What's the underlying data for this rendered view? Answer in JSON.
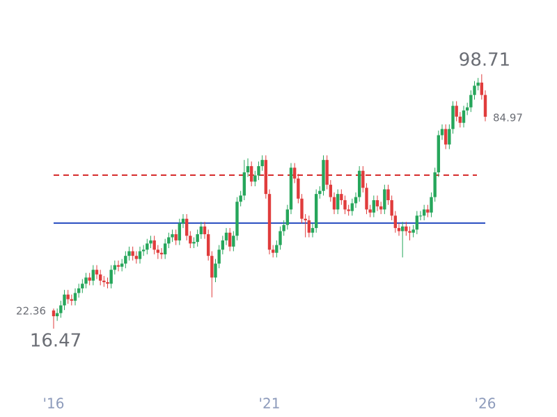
{
  "chart_data": {
    "type": "candlestick",
    "categories": [
      "'16",
      null,
      null,
      null,
      null,
      null,
      null,
      null,
      null,
      null,
      null,
      null,
      null,
      null,
      null,
      null,
      null,
      null,
      null,
      null,
      null,
      null,
      null,
      null,
      null,
      null,
      null,
      null,
      null,
      null,
      null,
      null,
      null,
      null,
      null,
      null,
      null,
      null,
      null,
      null,
      null,
      null,
      null,
      null,
      null,
      null,
      null,
      null,
      null,
      null,
      null,
      null,
      null,
      null,
      null,
      null,
      null,
      null,
      null,
      null,
      "'21",
      null,
      null,
      null,
      null,
      null,
      null,
      null,
      null,
      null,
      null,
      null,
      null,
      null,
      null,
      null,
      null,
      null,
      null,
      null,
      null,
      null,
      null,
      null,
      null,
      null,
      null,
      null,
      null,
      null,
      null,
      null,
      null,
      null,
      null,
      null,
      null,
      null,
      null,
      null,
      null,
      null,
      null,
      null,
      null,
      null,
      null,
      null,
      null,
      null,
      null,
      null,
      null,
      null,
      null,
      null,
      null,
      null,
      null,
      null,
      "'26"
    ],
    "ohlc": [
      [
        22.36,
        23,
        16.47,
        20.5
      ],
      [
        20.5,
        23,
        19,
        21.5
      ],
      [
        21.5,
        25.5,
        20,
        24
      ],
      [
        24,
        29,
        22.5,
        27.5
      ],
      [
        27.5,
        29,
        24.5,
        26
      ],
      [
        26,
        27.5,
        24,
        25.5
      ],
      [
        25.5,
        29.5,
        24,
        28
      ],
      [
        28,
        31,
        26.5,
        29.5
      ],
      [
        29.5,
        32.5,
        28,
        31
      ],
      [
        31,
        34.5,
        29.5,
        33
      ],
      [
        33,
        34.5,
        30.5,
        32
      ],
      [
        32,
        37,
        30.5,
        35.5
      ],
      [
        35.5,
        37,
        32.5,
        34
      ],
      [
        34,
        35.5,
        30.5,
        32
      ],
      [
        32,
        33.5,
        30,
        31.5
      ],
      [
        31.5,
        33,
        29.5,
        31
      ],
      [
        31,
        37,
        29.5,
        35.5
      ],
      [
        35.5,
        38.5,
        34,
        37
      ],
      [
        37,
        38.5,
        35,
        36.5
      ],
      [
        36.5,
        39,
        35,
        37.5
      ],
      [
        37.5,
        41.5,
        36,
        40
      ],
      [
        40,
        43,
        38.5,
        41.5
      ],
      [
        41.5,
        43,
        38.5,
        40
      ],
      [
        40,
        41.5,
        37.5,
        39
      ],
      [
        39,
        43,
        37.5,
        41.5
      ],
      [
        41.5,
        43.5,
        40,
        42
      ],
      [
        42,
        45.5,
        40.5,
        44
      ],
      [
        44,
        46.5,
        42.5,
        45
      ],
      [
        45,
        46.5,
        40.5,
        42
      ],
      [
        42,
        43.5,
        39,
        41
      ],
      [
        41,
        42.5,
        39,
        40.5
      ],
      [
        40.5,
        45.5,
        39,
        44
      ],
      [
        44,
        47.5,
        42.5,
        46
      ],
      [
        46,
        48.5,
        44.5,
        47
      ],
      [
        47,
        48.5,
        43.5,
        45
      ],
      [
        45,
        52,
        43.5,
        50.5
      ],
      [
        50.5,
        53.5,
        49,
        52
      ],
      [
        52,
        53.5,
        45,
        46.5
      ],
      [
        46.5,
        48,
        42.5,
        44
      ],
      [
        44,
        46,
        42.5,
        44.5
      ],
      [
        44.5,
        48.5,
        43,
        47
      ],
      [
        47,
        51,
        45.5,
        49.5
      ],
      [
        49.5,
        51,
        45.5,
        47
      ],
      [
        47,
        48.5,
        38.5,
        40
      ],
      [
        40,
        41.5,
        26.6,
        33
      ],
      [
        33,
        39,
        31.5,
        37.5
      ],
      [
        37.5,
        43.5,
        36,
        42
      ],
      [
        42,
        46.5,
        40.5,
        45
      ],
      [
        45,
        49,
        43.5,
        47.5
      ],
      [
        47.5,
        49,
        41.5,
        43
      ],
      [
        43,
        48,
        41.5,
        46.5
      ],
      [
        46.5,
        59,
        45,
        57.5
      ],
      [
        57.5,
        61,
        56,
        59.5
      ],
      [
        59.5,
        71,
        58,
        67
      ],
      [
        67,
        71.5,
        65.5,
        69
      ],
      [
        69,
        70.5,
        62.5,
        64
      ],
      [
        64,
        67.5,
        62.5,
        66
      ],
      [
        66,
        70.5,
        64.5,
        69
      ],
      [
        69,
        72.5,
        67.5,
        71
      ],
      [
        71,
        72.5,
        58.5,
        60
      ],
      [
        60,
        61.5,
        40.5,
        42
      ],
      [
        42,
        43.5,
        39.5,
        41
      ],
      [
        41,
        45,
        39.5,
        43.5
      ],
      [
        43.5,
        49.5,
        42,
        48
      ],
      [
        48,
        51.5,
        46.5,
        50
      ],
      [
        50,
        56.5,
        48.5,
        55
      ],
      [
        55,
        70,
        53.5,
        68.5
      ],
      [
        68.5,
        70,
        63.5,
        65
      ],
      [
        65,
        66.5,
        57,
        58.5
      ],
      [
        58.5,
        60,
        50.5,
        52
      ],
      [
        52,
        53.5,
        46,
        51.5
      ],
      [
        51.5,
        53,
        46,
        47.5
      ],
      [
        47.5,
        50.5,
        46,
        49
      ],
      [
        49,
        61.5,
        47.5,
        60
      ],
      [
        60,
        62.5,
        58.5,
        61
      ],
      [
        61,
        72.5,
        59.5,
        71
      ],
      [
        71,
        72.5,
        61.5,
        63
      ],
      [
        63,
        64.5,
        57.5,
        59
      ],
      [
        59,
        60.5,
        53.5,
        55
      ],
      [
        55,
        61.5,
        53.5,
        60
      ],
      [
        60,
        61.5,
        56.5,
        58
      ],
      [
        58,
        59.5,
        53.5,
        55
      ],
      [
        55,
        56.5,
        53,
        54.5
      ],
      [
        54.5,
        58.5,
        53,
        57
      ],
      [
        57,
        60.5,
        55.5,
        59
      ],
      [
        59,
        69,
        57.5,
        67.5
      ],
      [
        67.5,
        69,
        60.5,
        62
      ],
      [
        62,
        63.5,
        53.5,
        55
      ],
      [
        55,
        56.5,
        52.5,
        54
      ],
      [
        54,
        59.5,
        52.5,
        58
      ],
      [
        58,
        59.5,
        54.5,
        56
      ],
      [
        56,
        57.5,
        53.5,
        55
      ],
      [
        55,
        63,
        53.5,
        61.5
      ],
      [
        61.5,
        63,
        56.5,
        58
      ],
      [
        58,
        59.5,
        51.5,
        53
      ],
      [
        53,
        54.5,
        47.5,
        49
      ],
      [
        49,
        50.5,
        46.5,
        48
      ],
      [
        48,
        51,
        39.5,
        49.5
      ],
      [
        49.5,
        51,
        46.5,
        48
      ],
      [
        48,
        49.5,
        45,
        47.5
      ],
      [
        47.5,
        50,
        46,
        48.5
      ],
      [
        48.5,
        54.5,
        47,
        53
      ],
      [
        53,
        54.5,
        51.5,
        53
      ],
      [
        53,
        56.5,
        51.5,
        55
      ],
      [
        55,
        56.5,
        52.5,
        54
      ],
      [
        54,
        60.5,
        52.5,
        59
      ],
      [
        59,
        68.5,
        57.5,
        67
      ],
      [
        67,
        80.5,
        65.5,
        79
      ],
      [
        79,
        82.5,
        77.5,
        81
      ],
      [
        81,
        82.5,
        74.5,
        76
      ],
      [
        76,
        82.5,
        74.5,
        81
      ],
      [
        81,
        90,
        79.5,
        88.5
      ],
      [
        88.5,
        90,
        83.5,
        85
      ],
      [
        85,
        86.5,
        81.5,
        83
      ],
      [
        83,
        88.5,
        81.5,
        87
      ],
      [
        87,
        89.5,
        85.5,
        88
      ],
      [
        88,
        93.5,
        86.5,
        92
      ],
      [
        92,
        96.5,
        90.5,
        95
      ],
      [
        95,
        97.5,
        93.5,
        96
      ],
      [
        96,
        98.71,
        90.5,
        92
      ],
      [
        92,
        93.5,
        83.5,
        84.97
      ]
    ],
    "up_color": "#26a65b",
    "down_color": "#e03c3c",
    "hlines": [
      {
        "value": 50.6,
        "color": "#2a4fc1",
        "style": "solid"
      },
      {
        "value": 66.1,
        "color": "#d62b2b",
        "style": "dashed"
      }
    ],
    "ylim": [
      5,
      120
    ],
    "grid": false
  }
}
